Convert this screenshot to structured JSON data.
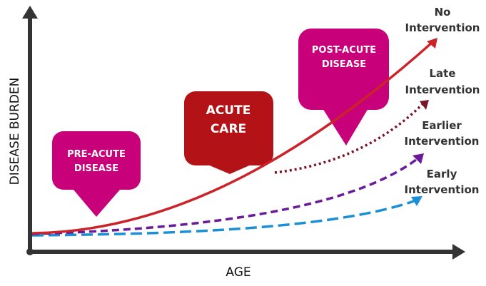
{
  "axes": {
    "x_label": "AGE",
    "y_label": "DISEASE BURDEN"
  },
  "boxes": [
    {
      "line1": "PRE-ACUTE",
      "line2": "DISEASE",
      "color": "#c8007a"
    },
    {
      "line1": "ACUTE",
      "line2": "CARE",
      "color": "#b31217"
    },
    {
      "line1": "POST-ACUTE",
      "line2": "DISEASE",
      "color": "#c8007a"
    }
  ],
  "curves": [
    {
      "line1": "No",
      "line2": "Intervention",
      "color": "#cc2229",
      "style": "solid"
    },
    {
      "line1": "Late",
      "line2": "Intervention",
      "color": "#7b1428",
      "style": "dotted"
    },
    {
      "line1": "Earlier",
      "line2": "Intervention",
      "color": "#6a1b9a",
      "style": "dashed"
    },
    {
      "line1": "Early",
      "line2": "Intervention",
      "color": "#1b8fd6",
      "style": "long-dashed"
    }
  ]
}
